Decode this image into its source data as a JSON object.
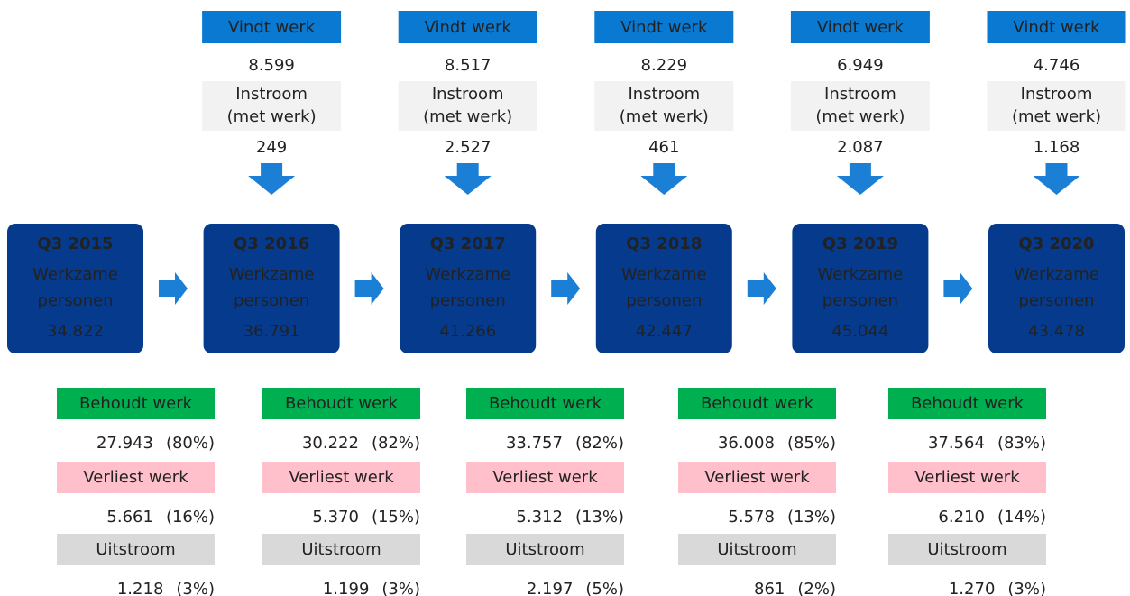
{
  "nodes": [
    {
      "period": "Q3 2015",
      "line1": "Werkzame",
      "line2": "personen",
      "value": "34.822"
    },
    {
      "period": "Q3 2016",
      "line1": "Werkzame",
      "line2": "personen",
      "value": "36.791"
    },
    {
      "period": "Q3 2017",
      "line1": "Werkzame",
      "line2": "personen",
      "value": "41.266"
    },
    {
      "period": "Q3 2018",
      "line1": "Werkzame",
      "line2": "personen",
      "value": "42.447"
    },
    {
      "period": "Q3 2019",
      "line1": "Werkzame",
      "line2": "personen",
      "value": "45.044"
    },
    {
      "period": "Q3 2020",
      "line1": "Werkzame",
      "line2": "personen",
      "value": "43.478"
    }
  ],
  "inflows": [
    {
      "vindt_label": "Vindt werk",
      "vindt_value": "8.599",
      "instroom_line1": "Instroom",
      "instroom_line2": "(met werk)",
      "instroom_value": "249"
    },
    {
      "vindt_label": "Vindt werk",
      "vindt_value": "8.517",
      "instroom_line1": "Instroom",
      "instroom_line2": "(met werk)",
      "instroom_value": "2.527"
    },
    {
      "vindt_label": "Vindt werk",
      "vindt_value": "8.229",
      "instroom_line1": "Instroom",
      "instroom_line2": "(met werk)",
      "instroom_value": "461"
    },
    {
      "vindt_label": "Vindt werk",
      "vindt_value": "6.949",
      "instroom_line1": "Instroom",
      "instroom_line2": "(met werk)",
      "instroom_value": "2.087"
    },
    {
      "vindt_label": "Vindt werk",
      "vindt_value": "4.746",
      "instroom_line1": "Instroom",
      "instroom_line2": "(met werk)",
      "instroom_value": "1.168"
    }
  ],
  "outflows": [
    {
      "behoudt_label": "Behoudt werk",
      "behoudt_value": "27.943",
      "behoudt_pct": "(80%)",
      "verliest_label": "Verliest werk",
      "verliest_value": "5.661",
      "verliest_pct": "(16%)",
      "uitstroom_label": "Uitstroom",
      "uitstroom_value": "1.218",
      "uitstroom_pct": "(3%)"
    },
    {
      "behoudt_label": "Behoudt werk",
      "behoudt_value": "30.222",
      "behoudt_pct": "(82%)",
      "verliest_label": "Verliest werk",
      "verliest_value": "5.370",
      "verliest_pct": "(15%)",
      "uitstroom_label": "Uitstroom",
      "uitstroom_value": "1.199",
      "uitstroom_pct": "(3%)"
    },
    {
      "behoudt_label": "Behoudt werk",
      "behoudt_value": "33.757",
      "behoudt_pct": "(82%)",
      "verliest_label": "Verliest werk",
      "verliest_value": "5.312",
      "verliest_pct": "(13%)",
      "uitstroom_label": "Uitstroom",
      "uitstroom_value": "2.197",
      "uitstroom_pct": "(5%)"
    },
    {
      "behoudt_label": "Behoudt werk",
      "behoudt_value": "36.008",
      "behoudt_pct": "(85%)",
      "verliest_label": "Verliest werk",
      "verliest_value": "5.578",
      "verliest_pct": "(13%)",
      "uitstroom_label": "Uitstroom",
      "uitstroom_value": "861",
      "uitstroom_pct": "(2%)"
    },
    {
      "behoudt_label": "Behoudt werk",
      "behoudt_value": "37.564",
      "behoudt_pct": "(83%)",
      "verliest_label": "Verliest werk",
      "verliest_value": "6.210",
      "verliest_pct": "(14%)",
      "uitstroom_label": "Uitstroom",
      "uitstroom_value": "1.270",
      "uitstroom_pct": "(3%)"
    }
  ]
}
